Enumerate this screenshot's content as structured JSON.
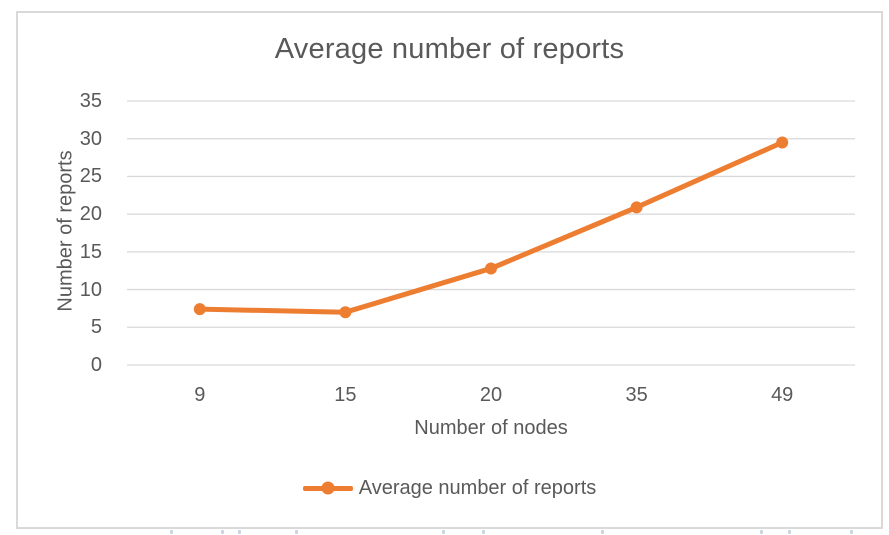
{
  "chart_data": {
    "type": "line",
    "title": "Average number of reports",
    "xlabel": "Number of nodes",
    "ylabel": "Number of reports",
    "categories": [
      "9",
      "15",
      "20",
      "35",
      "49"
    ],
    "series": [
      {
        "name": "Average number of reports",
        "values": [
          7.4,
          7.0,
          12.8,
          20.9,
          29.5
        ]
      }
    ],
    "y_ticks": [
      35,
      30,
      25,
      20,
      15,
      10,
      5,
      0
    ],
    "ylim": [
      0,
      35
    ],
    "grid": true,
    "legend_position": "bottom",
    "legend_label": "Average number of reports",
    "colors": {
      "line": "#ED7D31",
      "marker": "#ED7D31",
      "gridline": "#D9D9D9",
      "text": "#595959",
      "frame_border": "#D9D9D9"
    }
  }
}
